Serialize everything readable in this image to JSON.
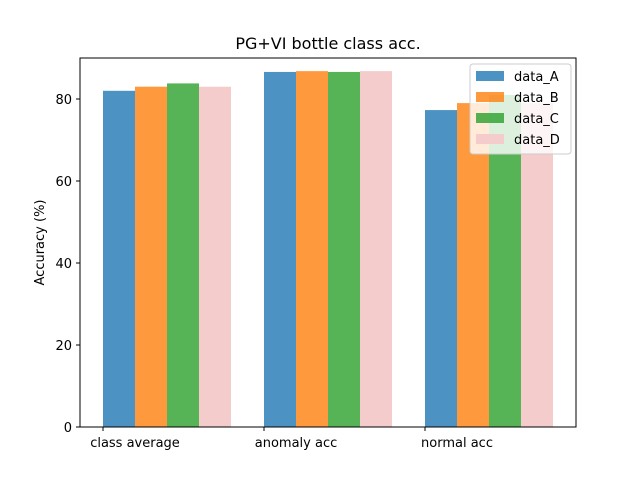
{
  "chart_data": {
    "type": "bar",
    "title": "PG+VI bottle class acc.",
    "xlabel": "",
    "ylabel": "Accuracy (%)",
    "categories": [
      "class average",
      "anomaly acc",
      "normal acc"
    ],
    "series": [
      {
        "name": "data_A",
        "values": [
          82.0,
          86.6,
          77.3
        ],
        "color": "#1f77b4"
      },
      {
        "name": "data_B",
        "values": [
          83.0,
          86.8,
          79.0
        ],
        "color": "#ff7f0e"
      },
      {
        "name": "data_C",
        "values": [
          83.8,
          86.6,
          81.0
        ],
        "color": "#2ca02c"
      },
      {
        "name": "data_D",
        "values": [
          83.0,
          86.8,
          79.0
        ],
        "color": "#f4cccc"
      }
    ],
    "ylim": [
      0,
      90
    ],
    "yticks": [
      0,
      20,
      40,
      60,
      80
    ],
    "legend_position": "top-right",
    "grid": false
  }
}
